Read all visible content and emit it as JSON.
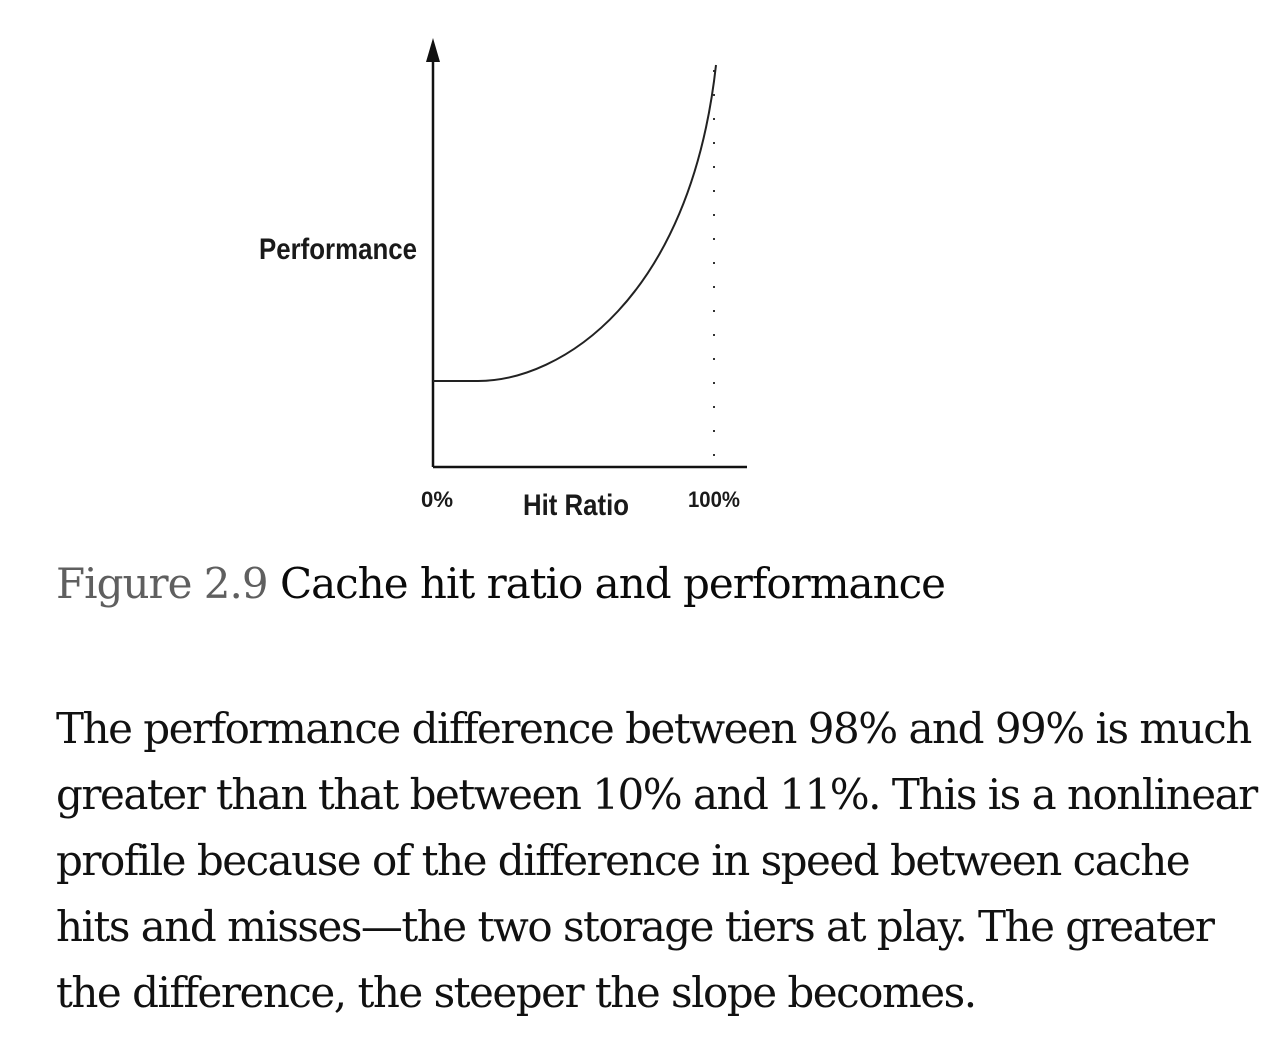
{
  "figure": {
    "ylabel": "Performance",
    "xlabel": "Hit Ratio",
    "x_start_label": "0%",
    "x_end_label": "100%",
    "axis_color": "#111111",
    "curve_color": "#222222"
  },
  "caption": {
    "number": "Figure 2.9",
    "title": "Cache hit ratio and performance"
  },
  "body": {
    "paragraph": "The performance difference between 98% and 99% is much greater than that between 10% and 11%. This is a nonlinear profile because of the difference in speed between cache hits and misses—the two storage tiers at play. The greater the difference, the steeper the slope becomes."
  }
}
